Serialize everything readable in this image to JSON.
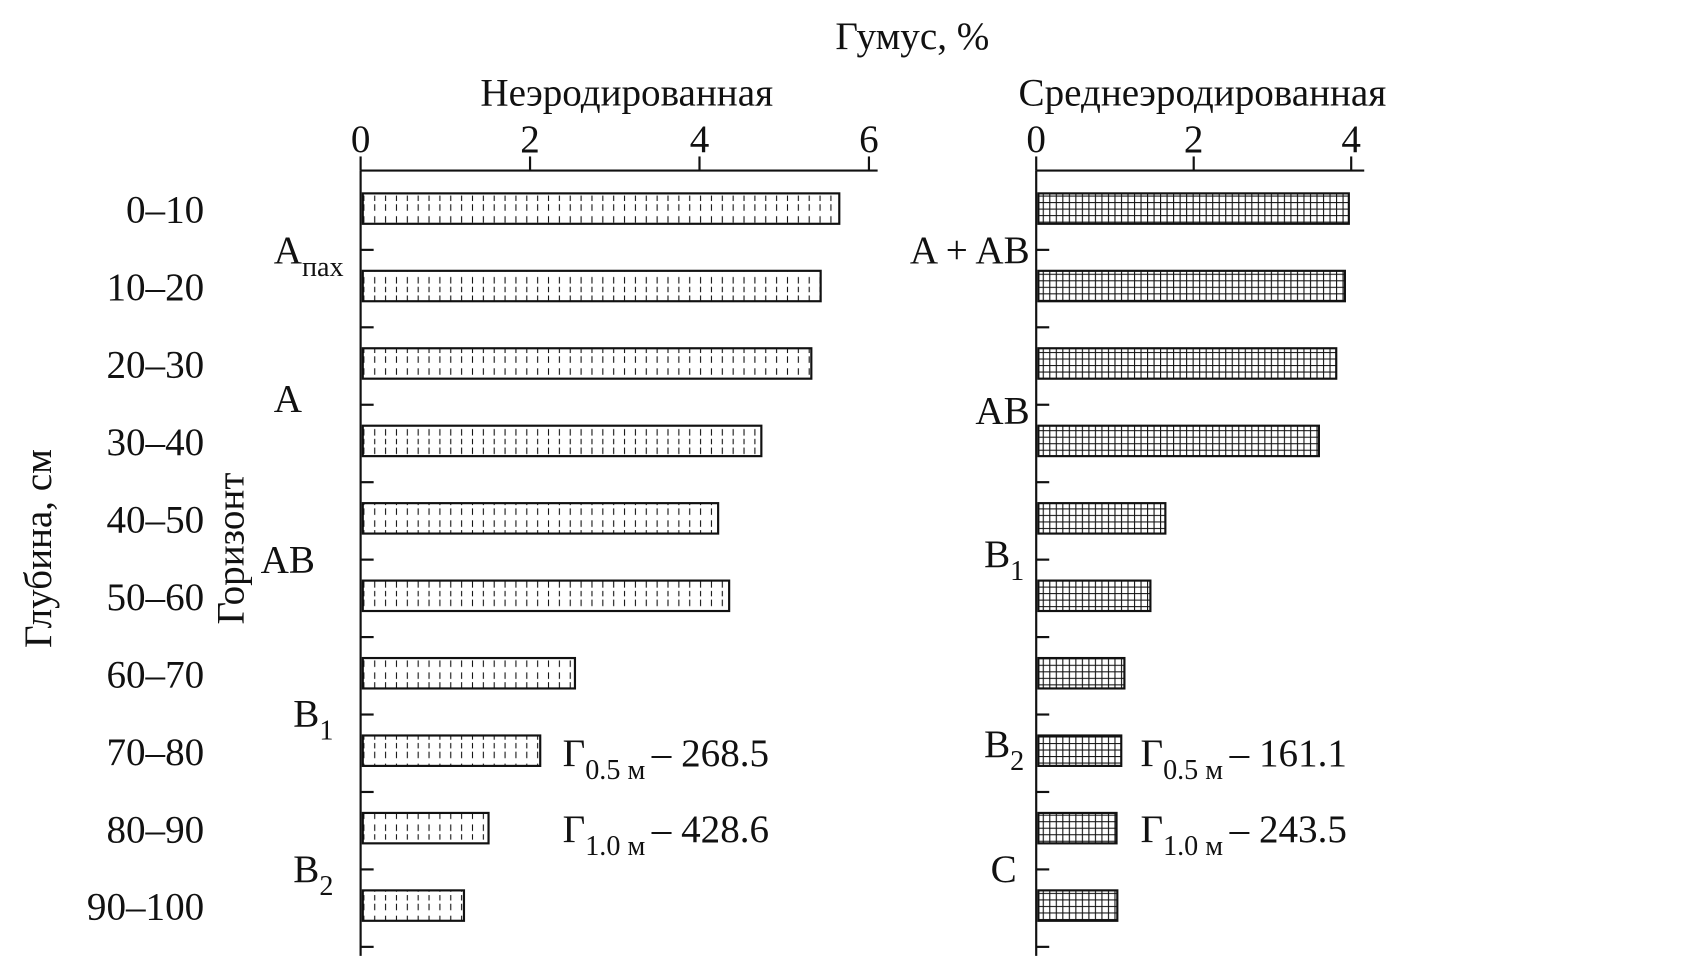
{
  "chart_data": [
    {
      "type": "bar",
      "orientation": "horizontal",
      "title": "Неэродированная",
      "xlabel": "Гумус, %",
      "ylabel": "Глубина, см",
      "ylabel2": "Горизонт",
      "xlim": [
        0,
        6
      ],
      "xticks": [
        "0",
        "2",
        "4",
        "6"
      ],
      "categories": [
        "0–10",
        "10–20",
        "20–30",
        "30–40",
        "40–50",
        "50–60",
        "60–70",
        "70–80",
        "80–90",
        "90–100"
      ],
      "values": [
        5.65,
        5.43,
        5.32,
        4.73,
        4.22,
        4.35,
        2.53,
        2.12,
        1.51,
        1.22
      ],
      "horizons": [
        {
          "main": "A",
          "sub": "пах"
        },
        {
          "main": "A",
          "sub": ""
        },
        {
          "main": "AB",
          "sub": ""
        },
        {
          "main": "B",
          "sub": "1"
        },
        {
          "main": "B",
          "sub": "2"
        }
      ],
      "annotations": [
        {
          "main": "Г",
          "sub": "0.5 м",
          "value": "– 268.5"
        },
        {
          "main": "Г",
          "sub": "1.0 м",
          "value": "– 428.6"
        }
      ],
      "pattern": "dashes"
    },
    {
      "type": "bar",
      "orientation": "horizontal",
      "title": "Среднеэродированная",
      "xlim": [
        0,
        4
      ],
      "xticks": [
        "0",
        "2",
        "4"
      ],
      "categories": [
        "0–10",
        "10–20",
        "20–30",
        "30–40",
        "40–50",
        "50–60",
        "60–70",
        "70–80",
        "80–90",
        "90–100"
      ],
      "values": [
        3.97,
        3.92,
        3.81,
        3.59,
        1.64,
        1.45,
        1.12,
        1.08,
        1.02,
        1.03
      ],
      "horizons": [
        {
          "main": "A + AB",
          "sub": ""
        },
        {
          "main": "AB",
          "sub": ""
        },
        {
          "main": "B",
          "sub": "1"
        },
        {
          "main": "B",
          "sub": "2"
        },
        {
          "main": "C",
          "sub": ""
        }
      ],
      "annotations": [
        {
          "main": "Г",
          "sub": "0.5 м",
          "value": "– 161.1"
        },
        {
          "main": "Г",
          "sub": "1.0 м",
          "value": "– 243.5"
        }
      ],
      "pattern": "grid"
    }
  ]
}
